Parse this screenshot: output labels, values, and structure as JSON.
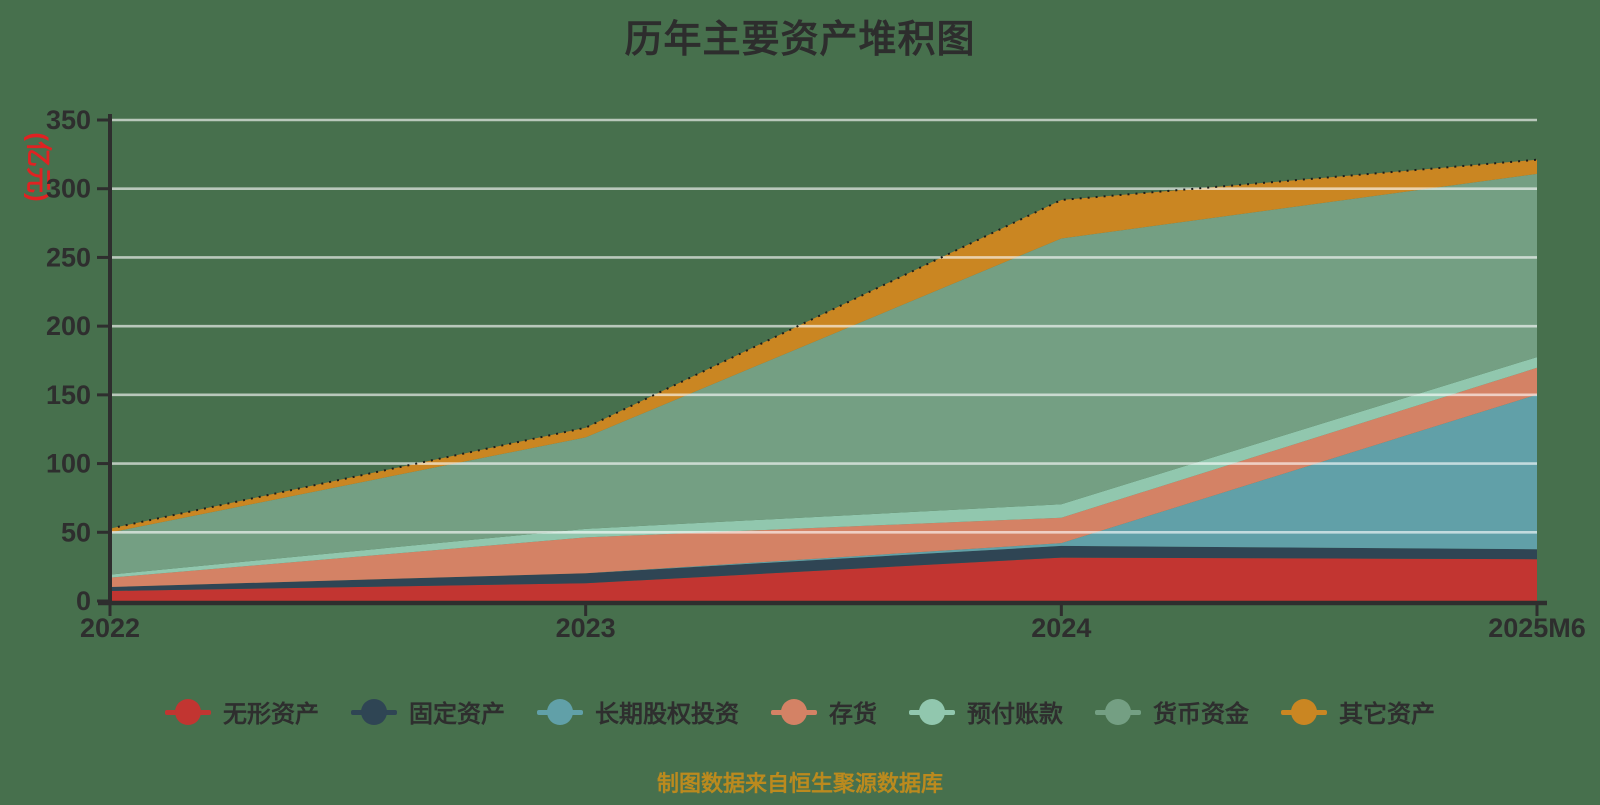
{
  "title": "历年主要资产堆积图",
  "y_axis_name": "(亿元)",
  "footer": {
    "source_note": "制图数据来自恒生聚源数据库"
  },
  "colors": {
    "background": "#47704d",
    "gridline": "rgba(255,255,255,0.62)",
    "axis": "#2e2e2e",
    "tick_label": "#2e2e2e",
    "title_text": "#2d2d2d",
    "y_axis_name_text": "#e02222",
    "footer_text": "#bb8a1e",
    "total_line": "#1c1c1c"
  },
  "chart_data": {
    "type": "area",
    "stacked": true,
    "title": "历年主要资产堆积图",
    "ylabel": "(亿元)",
    "xlabel": "",
    "x": [
      "2022",
      "2023",
      "2024",
      "2025M6"
    ],
    "y_ticks": [
      0,
      50,
      100,
      150,
      200,
      250,
      300,
      350
    ],
    "ylim": [
      0,
      350
    ],
    "grid": true,
    "legend_position": "bottom",
    "series": [
      {
        "name": "无形资产",
        "color": "#c23531",
        "values": [
          7.3,
          12.9,
          31.6,
          30.4
        ]
      },
      {
        "name": "固定资产",
        "color": "#2f4554",
        "values": [
          2.9,
          7.3,
          8.5,
          7.3
        ]
      },
      {
        "name": "长期股权投资",
        "color": "#61a0a8",
        "values": [
          0,
          0,
          2.0,
          112.5
        ]
      },
      {
        "name": "存货",
        "color": "#d48265",
        "values": [
          6.8,
          26.1,
          18.5,
          19.5
        ]
      },
      {
        "name": "预付账款",
        "color": "#91c7ae",
        "values": [
          2.2,
          6.2,
          9.8,
          7.8
        ]
      },
      {
        "name": "货币资金",
        "color": "#749f83",
        "values": [
          30.6,
          66.6,
          193.4,
          133.3
        ]
      },
      {
        "name": "其它资产",
        "color": "#ca8622",
        "values": [
          2.9,
          7.0,
          28.0,
          10.3
        ]
      }
    ],
    "totals": [
      52.7,
      126.1,
      291.8,
      321.1
    ]
  }
}
